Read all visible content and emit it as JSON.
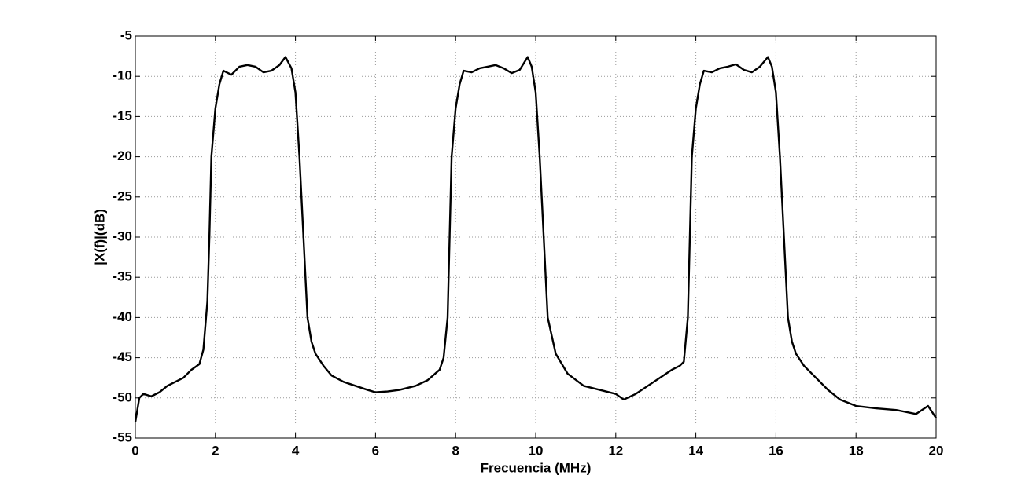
{
  "chart_data": {
    "type": "line",
    "xlabel": "Frecuencia (MHz)",
    "ylabel": "|X(f)|(dB)",
    "x": [
      0,
      0.1,
      0.2,
      0.4,
      0.6,
      0.8,
      1.0,
      1.2,
      1.4,
      1.6,
      1.7,
      1.8,
      1.85,
      1.9,
      2.0,
      2.1,
      2.2,
      2.4,
      2.6,
      2.8,
      3.0,
      3.2,
      3.4,
      3.6,
      3.75,
      3.9,
      4.0,
      4.1,
      4.2,
      4.3,
      4.4,
      4.5,
      4.7,
      4.9,
      5.2,
      5.5,
      5.8,
      6.0,
      6.3,
      6.6,
      7.0,
      7.3,
      7.6,
      7.7,
      7.8,
      7.85,
      7.9,
      8.0,
      8.1,
      8.2,
      8.4,
      8.6,
      8.8,
      9.0,
      9.2,
      9.4,
      9.6,
      9.8,
      9.9,
      10.0,
      10.1,
      10.2,
      10.3,
      10.5,
      10.8,
      11.2,
      11.6,
      12.0,
      12.2,
      12.5,
      12.8,
      13.1,
      13.4,
      13.6,
      13.7,
      13.8,
      13.85,
      13.9,
      14.0,
      14.1,
      14.2,
      14.4,
      14.6,
      14.8,
      15.0,
      15.2,
      15.4,
      15.6,
      15.8,
      15.9,
      16.0,
      16.1,
      16.2,
      16.3,
      16.4,
      16.5,
      16.7,
      17.0,
      17.3,
      17.6,
      18.0,
      18.5,
      19.0,
      19.5,
      19.8,
      20.0
    ],
    "series": [
      {
        "color": "#000000",
        "values": [
          -53,
          -50,
          -49.5,
          -49.8,
          -49.3,
          -48.5,
          -48,
          -47.5,
          -46.5,
          -45.8,
          -44,
          -38,
          -30,
          -20,
          -14,
          -11,
          -9.3,
          -9.8,
          -8.8,
          -8.6,
          -8.8,
          -9.5,
          -9.3,
          -8.6,
          -7.6,
          -9,
          -12,
          -20,
          -30,
          -40,
          -43,
          -44.5,
          -46,
          -47.2,
          -48,
          -48.5,
          -49,
          -49.3,
          -49.2,
          -49,
          -48.5,
          -47.8,
          -46.5,
          -45,
          -40,
          -30,
          -20,
          -14,
          -11,
          -9.3,
          -9.5,
          -9,
          -8.8,
          -8.6,
          -9,
          -9.6,
          -9.2,
          -7.6,
          -8.8,
          -12,
          -20,
          -30,
          -40,
          -44.5,
          -47,
          -48.5,
          -49,
          -49.5,
          -50.2,
          -49.5,
          -48.5,
          -47.5,
          -46.5,
          -46,
          -45.5,
          -40,
          -30,
          -20,
          -14,
          -11,
          -9.3,
          -9.5,
          -9,
          -8.8,
          -8.5,
          -9.2,
          -9.5,
          -8.8,
          -7.6,
          -8.8,
          -12,
          -20,
          -30,
          -40,
          -43,
          -44.5,
          -46,
          -47.5,
          -49,
          -50.2,
          -51,
          -51.3,
          -51.5,
          -52,
          -51,
          -52.5
        ]
      }
    ],
    "xlim": [
      0,
      20
    ],
    "xticks": [
      0,
      2,
      4,
      6,
      8,
      10,
      12,
      14,
      16,
      18,
      20
    ],
    "ylim": [
      -55,
      -5
    ],
    "yticks": [
      -55,
      -50,
      -45,
      -40,
      -35,
      -30,
      -25,
      -20,
      -15,
      -10,
      -5
    ],
    "grid": true
  }
}
